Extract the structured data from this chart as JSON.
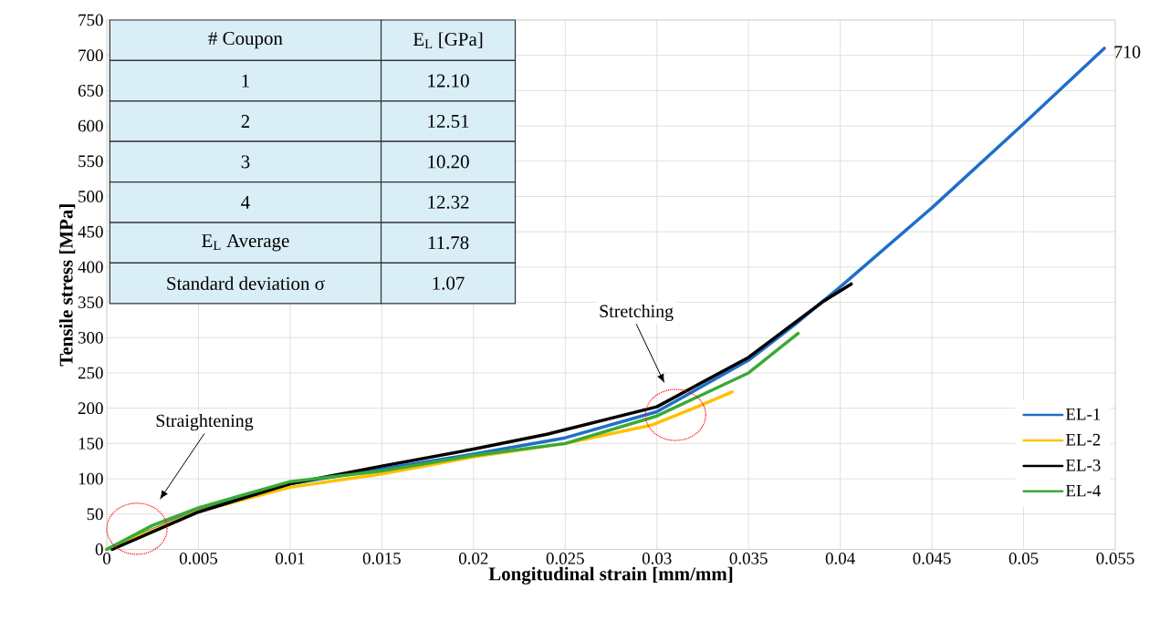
{
  "chart_data": {
    "type": "line",
    "xlabel": "Longitudinal strain [mm/mm]",
    "ylabel": "Tensile stress [MPa]",
    "xlim": [
      0,
      0.055
    ],
    "xticks": [
      0,
      0.005,
      0.01,
      0.015,
      0.02,
      0.025,
      0.03,
      0.035,
      0.04,
      0.045,
      0.05,
      0.055
    ],
    "ylim": [
      0,
      750
    ],
    "yticks": [
      0,
      50,
      100,
      150,
      200,
      250,
      300,
      350,
      400,
      450,
      500,
      550,
      600,
      650,
      700,
      750
    ],
    "grid": true,
    "legend": "right",
    "marker": "none",
    "line_style": "solid",
    "series": [
      {
        "name": "EL-1",
        "color": "#1f6fc8",
        "x": [
          0,
          0.005,
          0.01,
          0.015,
          0.02,
          0.025,
          0.03,
          0.035,
          0.0375,
          0.04,
          0.045,
          0.05,
          0.0544
        ],
        "values": [
          0,
          56,
          93,
          114,
          135,
          158,
          195,
          268,
          318,
          372,
          484,
          603,
          710
        ]
      },
      {
        "name": "EL-2",
        "color": "#ffc000",
        "x": [
          0,
          0.005,
          0.01,
          0.015,
          0.02,
          0.025,
          0.0297,
          0.0322,
          0.0341
        ],
        "values": [
          0,
          54,
          88,
          107,
          131,
          150,
          176,
          202,
          223
        ]
      },
      {
        "name": "EL-3",
        "color": "#000000",
        "x": [
          0.0003,
          0.005,
          0.01,
          0.015,
          0.02,
          0.024,
          0.03,
          0.035,
          0.039,
          0.0406
        ],
        "values": [
          0,
          53,
          93,
          118,
          142,
          163,
          202,
          272,
          350,
          376
        ]
      },
      {
        "name": "EL-4",
        "color": "#3aaa35",
        "x": [
          0,
          0.0025,
          0.005,
          0.01,
          0.015,
          0.02,
          0.025,
          0.03,
          0.035,
          0.0377
        ],
        "values": [
          0,
          34,
          59,
          96,
          111,
          133,
          150,
          189,
          250,
          306
        ]
      }
    ],
    "annotations": [
      "# Coupon",
      "E$_{L}$ [GPa]",
      "1",
      "12.10",
      "2",
      "12.51",
      "3",
      "10.20",
      "4",
      "12.32",
      "E$_{L}$ Average",
      "11.78",
      "Standard deviation σ",
      "1.07",
      {
        "text": "710",
        "x": 0.0544,
        "y": 710
      },
      "Straightening",
      "Stretching"
    ]
  }
}
